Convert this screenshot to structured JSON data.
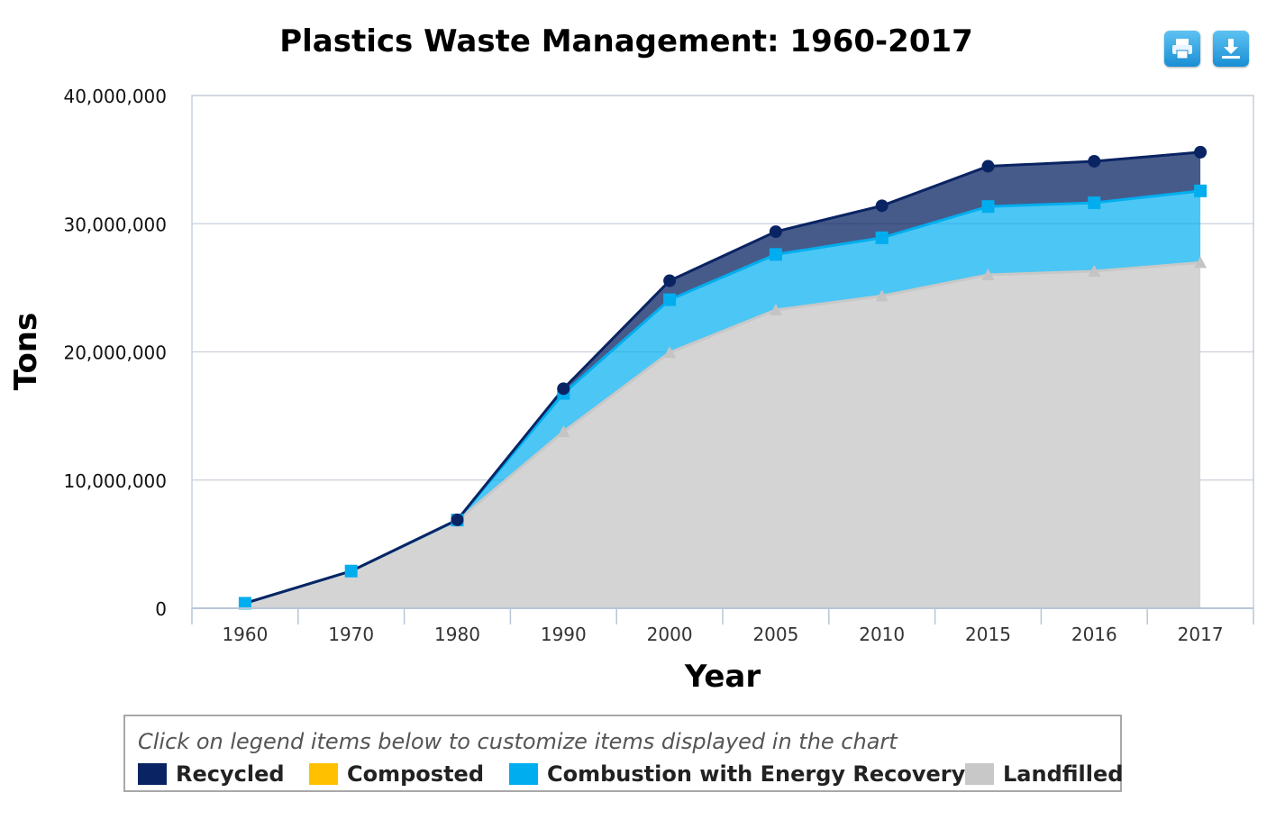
{
  "toolbar": {
    "print_icon": "print-icon",
    "download_icon": "download-icon"
  },
  "legend": {
    "hint": "Click on legend items below to customize items displayed in the chart",
    "items": [
      {
        "label": "Recycled",
        "color": "#0a2463"
      },
      {
        "label": "Composted",
        "color": "#ffc000"
      },
      {
        "label": "Combustion with Energy Recovery",
        "color": "#00aeef"
      },
      {
        "label": "Landfilled",
        "color": "#c8c8c8"
      }
    ]
  },
  "chart_data": {
    "type": "area",
    "stacked": true,
    "title": "Plastics Waste Management: 1960-2017",
    "xlabel": "Year",
    "ylabel": "Tons",
    "categories": [
      "1960",
      "1970",
      "1980",
      "1990",
      "2000",
      "2005",
      "2010",
      "2015",
      "2016",
      "2017"
    ],
    "ylim": [
      0,
      40000000
    ],
    "yticks": [
      0,
      10000000,
      20000000,
      30000000,
      40000000
    ],
    "ytick_labels": [
      "0",
      "10,000,000",
      "20,000,000",
      "30,000,000",
      "40,000,000"
    ],
    "grid": true,
    "series": [
      {
        "name": "Landfilled",
        "color": "#d4d4d4",
        "line_color": "#c8c8c8",
        "marker": "triangle",
        "values": [
          390000,
          2900000,
          6830000,
          13780000,
          19950000,
          23270000,
          24370000,
          26010000,
          26290000,
          26970000
        ]
      },
      {
        "name": "Combustion with Energy Recovery",
        "color": "#00aeef",
        "line_color": "#00aeef",
        "marker": "square",
        "values": [
          0,
          0,
          50000,
          2980000,
          4120000,
          4330000,
          4530000,
          5330000,
          5340000,
          5590000
        ]
      },
      {
        "name": "Composted",
        "color": "#ffc000",
        "line_color": "#ffc000",
        "marker": "none",
        "values": [
          0,
          0,
          0,
          0,
          0,
          0,
          0,
          0,
          0,
          0
        ]
      },
      {
        "name": "Recycled",
        "color": "#0a2463",
        "line_color": "#0a2463",
        "marker": "circle",
        "values": [
          0,
          0,
          20000,
          370000,
          1480000,
          1780000,
          2500000,
          3140000,
          3240000,
          3020000
        ]
      }
    ]
  }
}
